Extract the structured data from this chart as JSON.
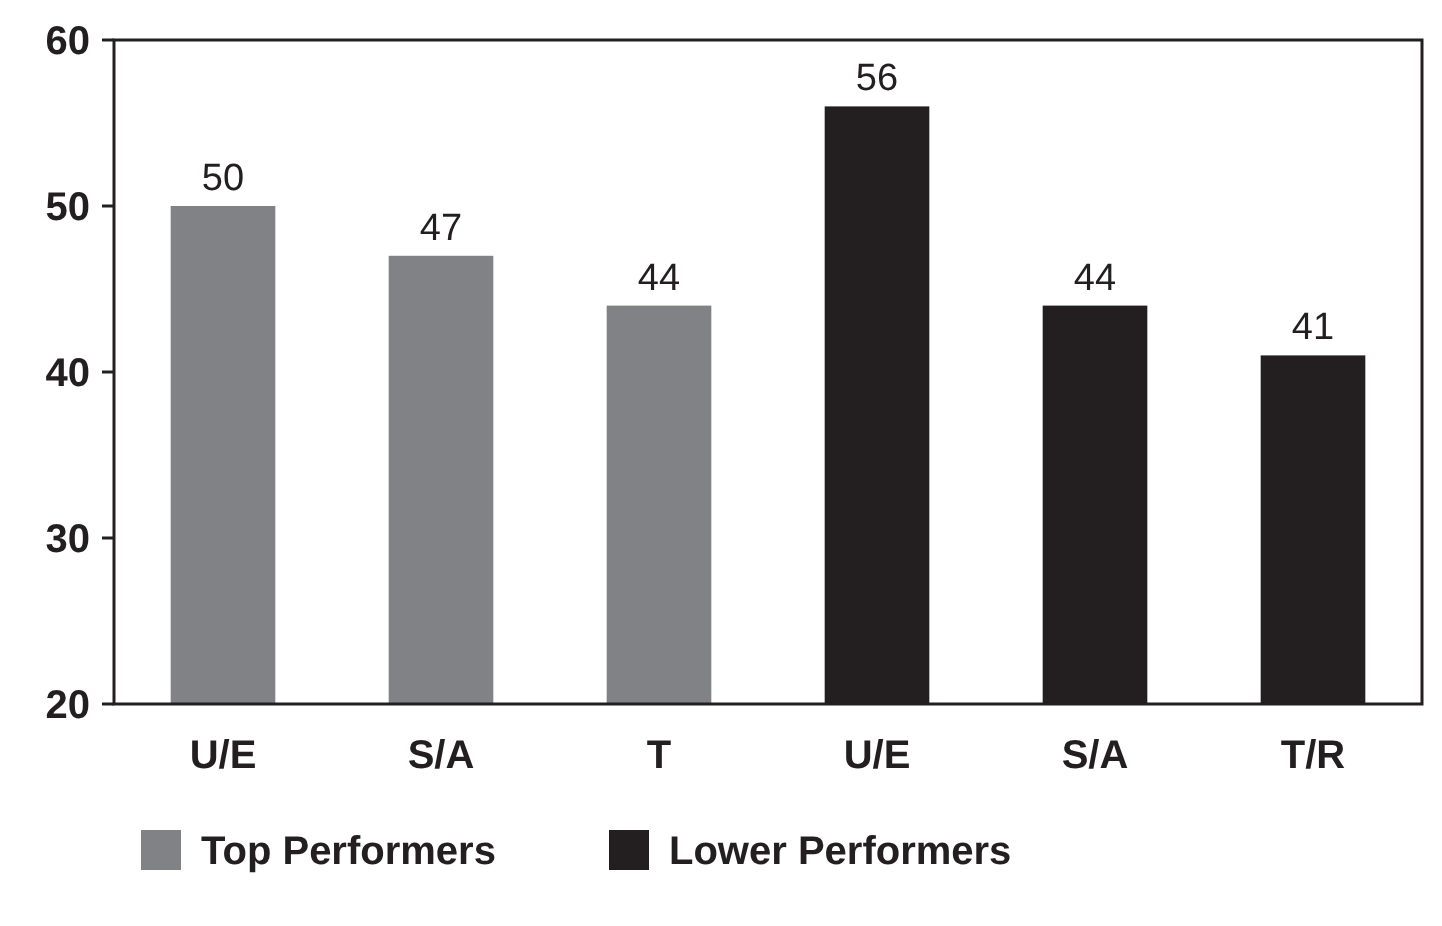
{
  "chart_data": {
    "type": "bar",
    "categories": [
      "U/E",
      "S/A",
      "T",
      "U/E",
      "S/A",
      "T/R"
    ],
    "series": [
      {
        "name": "Top Performers",
        "color": "#808285",
        "values": [
          50,
          47,
          44,
          null,
          null,
          null
        ]
      },
      {
        "name": "Lower Performers",
        "color": "#231f20",
        "values": [
          null,
          null,
          null,
          56,
          44,
          41
        ]
      }
    ],
    "ylim": [
      20,
      60
    ],
    "yticks": [
      20,
      30,
      40,
      50,
      60
    ],
    "data_labels": true,
    "legend": "bottom",
    "grid": false
  }
}
